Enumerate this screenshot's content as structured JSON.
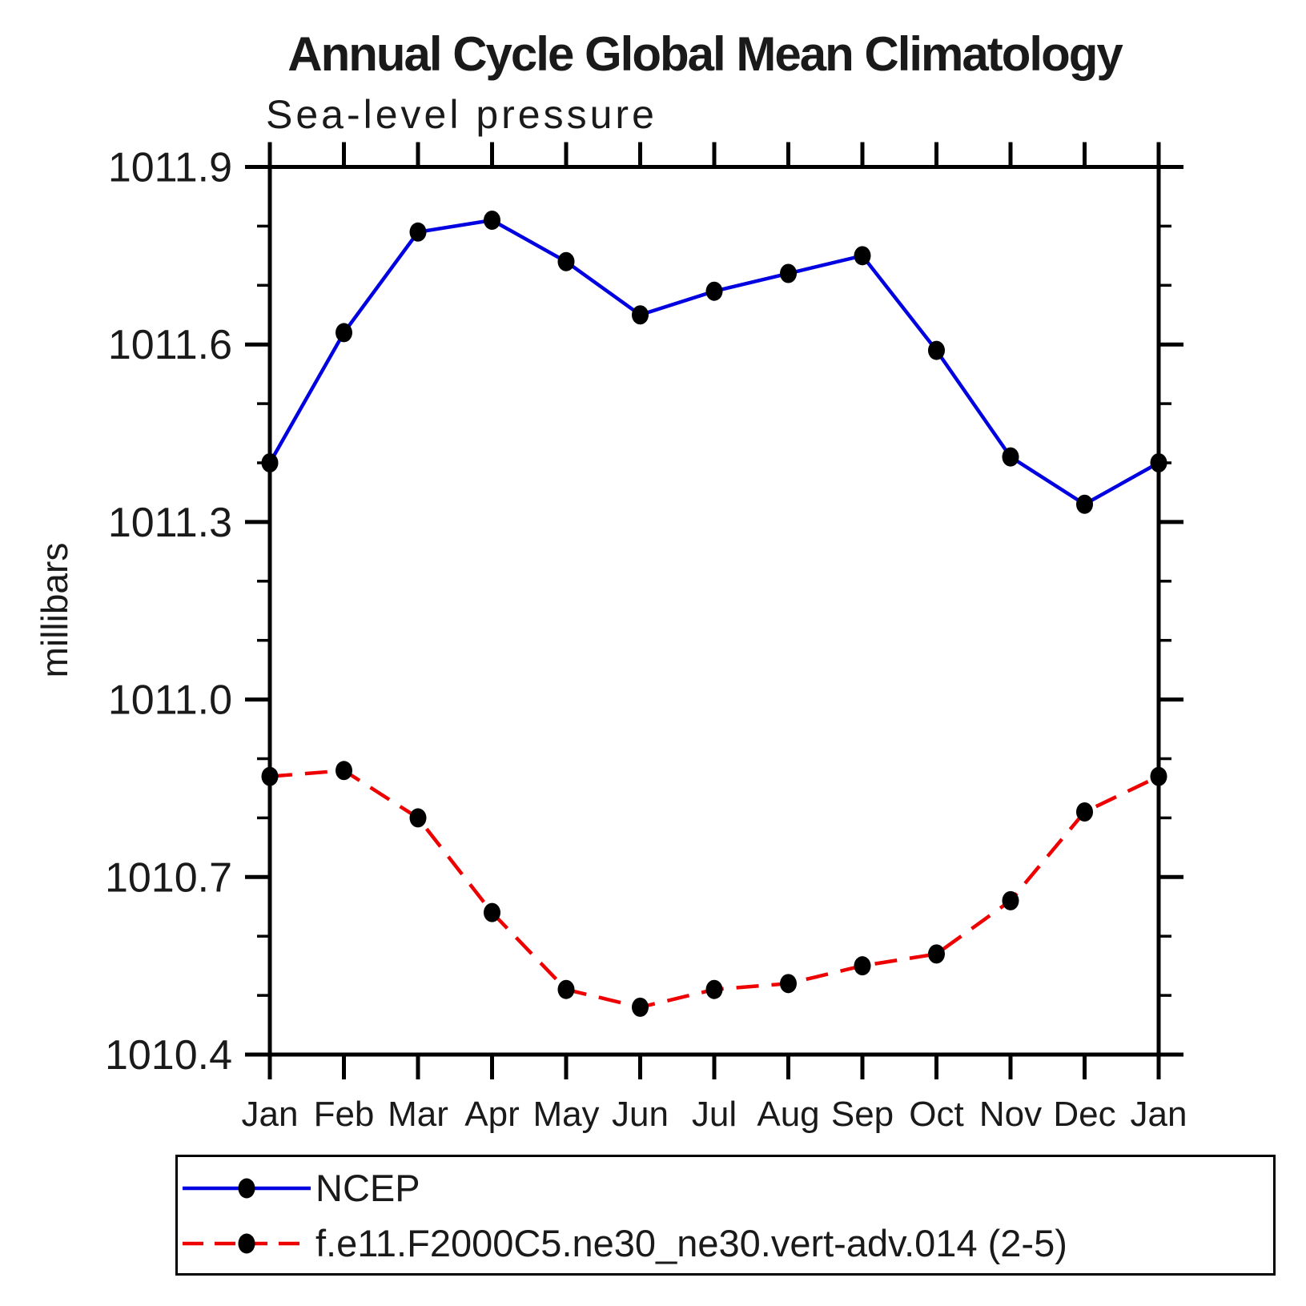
{
  "title": "Annual Cycle Global Mean Climatology",
  "subtitle": "Sea-level pressure",
  "chart_data": {
    "type": "line",
    "title": "Annual Cycle Global Mean Climatology",
    "subtitle": "Sea-level pressure",
    "xlabel": "",
    "ylabel": "millibars",
    "x_categories": [
      "Jan",
      "Feb",
      "Mar",
      "Apr",
      "May",
      "Jun",
      "Jul",
      "Aug",
      "Sep",
      "Oct",
      "Nov",
      "Dec",
      "Jan"
    ],
    "ylim": [
      1010.4,
      1011.9
    ],
    "y_major_ticks": [
      1010.4,
      1010.7,
      1011.0,
      1011.3,
      1011.6,
      1011.9
    ],
    "y_minor_step": 0.1,
    "grid": false,
    "legend_position": "bottom-box",
    "frame_color": "#000000",
    "marker_color": "#000000",
    "series": [
      {
        "name": "NCEP",
        "color": "#0000e0",
        "line_style": "solid",
        "marker": "circle",
        "values": [
          1011.4,
          1011.62,
          1011.79,
          1011.81,
          1011.74,
          1011.65,
          1011.69,
          1011.72,
          1011.75,
          1011.59,
          1011.41,
          1011.33,
          1011.4
        ]
      },
      {
        "name": "f.e11.F2000C5.ne30_ne30.vert-adv.014 (2-5)",
        "color": "#ee0000",
        "line_style": "dashed",
        "marker": "circle",
        "values": [
          1010.87,
          1010.88,
          1010.8,
          1010.64,
          1010.51,
          1010.48,
          1010.51,
          1010.52,
          1010.55,
          1010.57,
          1010.66,
          1010.81,
          1010.87
        ]
      }
    ]
  }
}
